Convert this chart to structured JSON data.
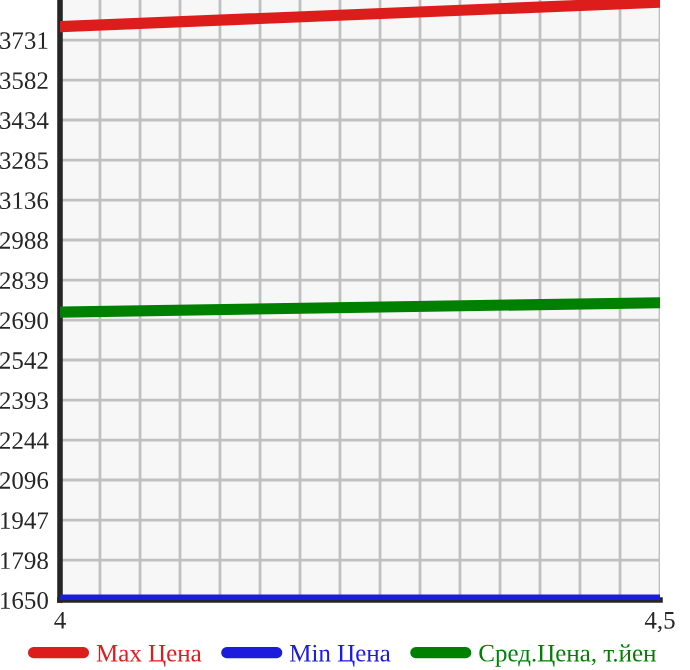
{
  "chart_data": {
    "type": "line",
    "x": [
      4,
      4.5
    ],
    "series": [
      {
        "name": "Max Цена",
        "color": "#dd1c1c",
        "values": [
          3781,
          3872
        ]
      },
      {
        "name": "Min Цена",
        "color": "#1c1cdd",
        "values": [
          1650,
          1650
        ]
      },
      {
        "name": "Сред.Цена, т.йен",
        "color": "#008000",
        "values": [
          2720,
          2755
        ]
      }
    ],
    "xlim": [
      4,
      4.5
    ],
    "xticks": [
      4,
      {
        "value": 4.0333,
        "label": null
      },
      {
        "value": 4.0667,
        "label": null
      },
      {
        "value": 4.1,
        "label": null
      },
      {
        "value": 4.1333,
        "label": null
      },
      {
        "value": 4.1667,
        "label": null
      },
      {
        "value": 4.2,
        "label": null
      },
      {
        "value": 4.2333,
        "label": null
      },
      {
        "value": 4.2667,
        "label": null
      },
      {
        "value": 4.3,
        "label": null
      },
      {
        "value": 4.3333,
        "label": null
      },
      {
        "value": 4.3667,
        "label": null
      },
      {
        "value": 4.4,
        "label": null
      },
      {
        "value": 4.4333,
        "label": null
      },
      {
        "value": 4.4667,
        "label": null
      },
      {
        "value": 4.5,
        "label": "4,5"
      }
    ],
    "ylim": [
      1650,
      3880
    ],
    "yticks": [
      1650,
      1798,
      1947,
      2096,
      2244,
      2393,
      2542,
      2690,
      2839,
      2988,
      3136,
      3285,
      3434,
      3582,
      3731
    ],
    "grid": true,
    "legend": "bottom",
    "marker": "none",
    "line_style": "solid"
  }
}
